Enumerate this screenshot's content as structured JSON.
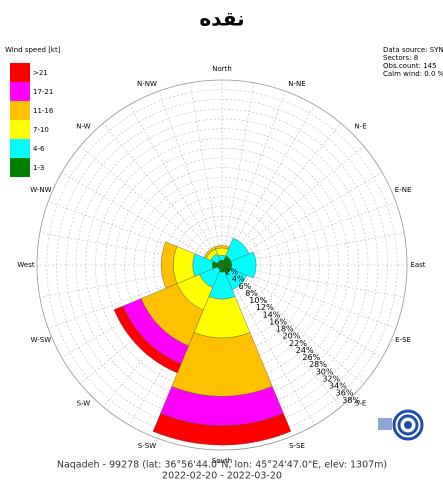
{
  "chart_data": {
    "type": "windrose",
    "title": "نقده",
    "legend_title": "Wind speed [kt]",
    "info": [
      "Data source: SYNOP",
      "Sectors: 8",
      "Obs.count: 145",
      "Calm wind: 0.0 %"
    ],
    "categories": [
      "North",
      "N-E",
      "East",
      "S-E",
      "South",
      "S-W",
      "West",
      "N-W"
    ],
    "minor_direction_labels": [
      "N-NE",
      "E-NE",
      "E-SE",
      "S-SE",
      "S-SW",
      "W-SW",
      "W-NW",
      "N-NW"
    ],
    "series": [
      {
        "name": ">21",
        "color": "#ff0000",
        "values": [
          0,
          0,
          0,
          0,
          4,
          2,
          0,
          0
        ]
      },
      {
        "name": "17-21",
        "color": "#ff00ff",
        "values": [
          0,
          0,
          0,
          0,
          6,
          4,
          0,
          0
        ]
      },
      {
        "name": "11-16",
        "color": "#ffc000",
        "values": [
          0.5,
          0,
          0,
          0,
          12,
          8,
          2.5,
          0.5
        ]
      },
      {
        "name": "7-10",
        "color": "#ffff00",
        "values": [
          1.5,
          0,
          0,
          0,
          8,
          5,
          4,
          1
        ]
      },
      {
        "name": "4-6",
        "color": "#00ffff",
        "values": [
          1,
          4,
          5,
          3.5,
          5.5,
          4,
          4,
          1.5
        ]
      },
      {
        "name": "1-3",
        "color": "#008000",
        "values": [
          1,
          2,
          2,
          2,
          1.5,
          1,
          2,
          1
        ]
      }
    ],
    "rlim": [
      0,
      38
    ],
    "rticks": [
      {
        "value": 2,
        "label": "2%"
      },
      {
        "value": 4,
        "label": "4%"
      },
      {
        "value": 6,
        "label": "6%"
      },
      {
        "value": 8,
        "label": "8%"
      },
      {
        "value": 10,
        "label": "10%"
      },
      {
        "value": 12,
        "label": "12%"
      },
      {
        "value": 14,
        "label": "14%"
      },
      {
        "value": 16,
        "label": "16%"
      },
      {
        "value": 18,
        "label": "18%"
      },
      {
        "value": 20,
        "label": "20%"
      },
      {
        "value": 22,
        "label": "22%"
      },
      {
        "value": 24,
        "label": "24%"
      },
      {
        "value": 26,
        "label": "26%"
      },
      {
        "value": 28,
        "label": "28%"
      },
      {
        "value": 30,
        "label": "30%"
      },
      {
        "value": 32,
        "label": "32%"
      },
      {
        "value": 34,
        "label": "34%"
      },
      {
        "value": 36,
        "label": "36%"
      },
      {
        "value": 38,
        "label": "38%"
      }
    ],
    "grid": true,
    "footer": [
      "Naqadeh - 99278 (lat: 36°56'44.0\"N, lon: 45°24'47.0\"E, elev: 1307m)",
      "2022-02-20 - 2022-03-20"
    ]
  }
}
